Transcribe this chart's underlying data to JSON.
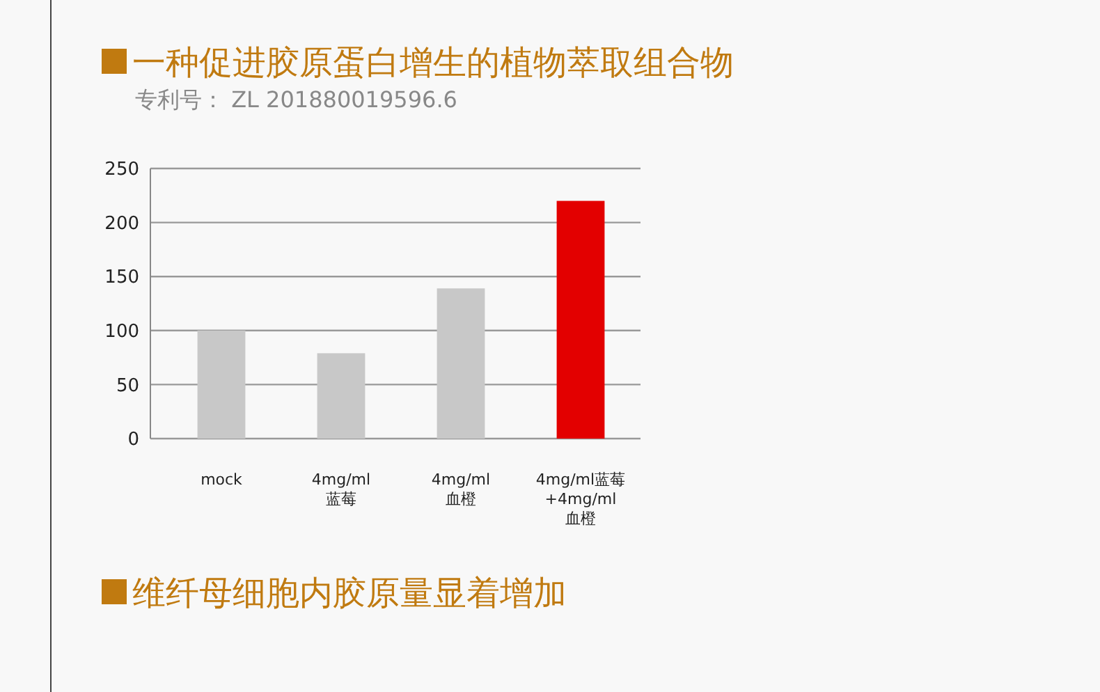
{
  "chart_data": {
    "type": "bar",
    "title": "一种促进胶原蛋白增生的植物萃取组合物",
    "subtitle": "专利号： ZL 201880019596.6",
    "categories": [
      "mock",
      "4mg/ml\n蓝莓",
      "4mg/ml\n血橙",
      "4mg/ml蓝莓\n+4mg/ml\n血橙"
    ],
    "values": [
      100,
      79,
      139,
      220
    ],
    "colors": [
      "#c8c8c8",
      "#c8c8c8",
      "#c8c8c8",
      "#e30000"
    ],
    "ylim": [
      0,
      250
    ],
    "yticks": [
      0,
      50,
      100,
      150,
      200,
      250
    ],
    "grid": "y",
    "annotations": [
      "维纤母细胞内胶原量显着增加"
    ]
  }
}
